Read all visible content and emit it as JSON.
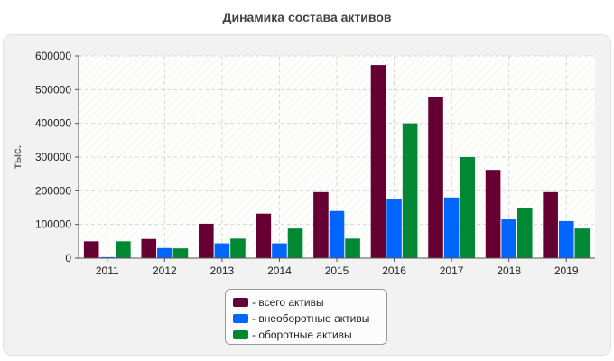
{
  "chart_data": {
    "type": "bar",
    "title": "Динамика состава активов",
    "ylabel": "тыс.",
    "xlabel": "",
    "ylim": [
      0,
      600000
    ],
    "yticks": [
      "0",
      "100000",
      "200000",
      "300000",
      "400000",
      "500000",
      "600000"
    ],
    "categories": [
      "2011",
      "2012",
      "2013",
      "2014",
      "2015",
      "2016",
      "2017",
      "2018",
      "2019"
    ],
    "series": [
      {
        "name": "- всего активы",
        "color": "#660033",
        "values": [
          50000,
          57000,
          102000,
          132000,
          196000,
          573000,
          477000,
          262000,
          196000
        ]
      },
      {
        "name": "- внеоборотные активы",
        "color": "#0066ff",
        "values": [
          3000,
          30000,
          44000,
          44000,
          140000,
          175000,
          180000,
          115000,
          110000
        ]
      },
      {
        "name": "- оборотные активы",
        "color": "#008833",
        "values": [
          50000,
          29000,
          58000,
          88000,
          58000,
          400000,
          300000,
          150000,
          88000
        ]
      }
    ],
    "grid": true,
    "legend": "bottom-center"
  }
}
